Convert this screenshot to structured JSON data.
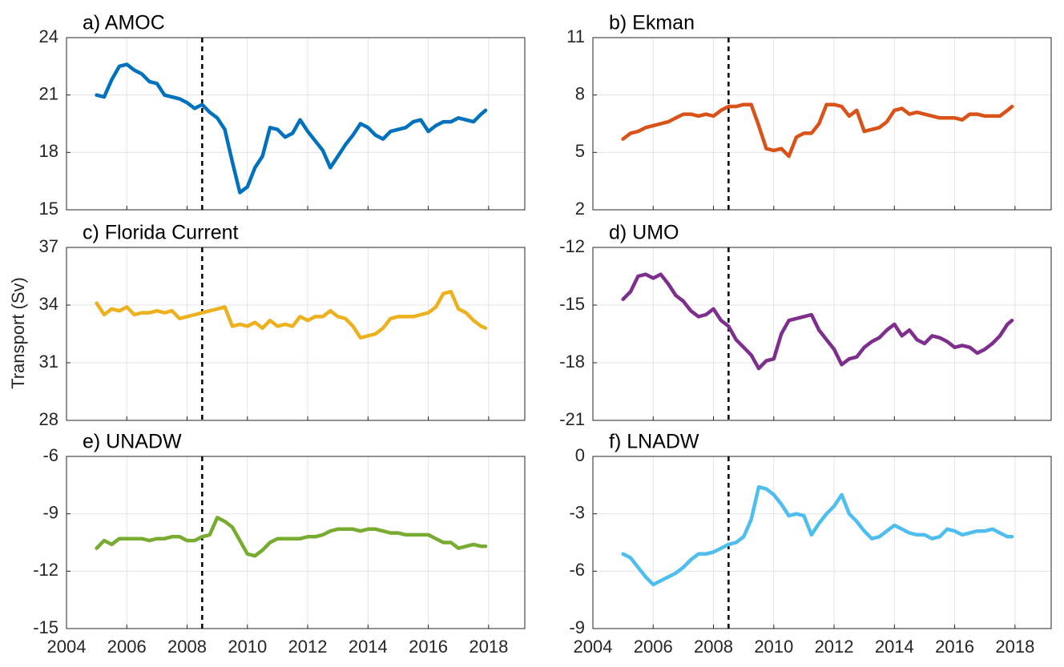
{
  "chart_data": [
    {
      "type": "line",
      "title": "a) AMOC",
      "color": "#0072bd",
      "xlim": [
        2004,
        2019.2
      ],
      "xticks": [
        2004,
        2006,
        2008,
        2010,
        2012,
        2014,
        2016,
        2018
      ],
      "ylim": [
        15,
        24
      ],
      "yticks": [
        15,
        18,
        21,
        24
      ],
      "grid": true,
      "vline": 2008.5,
      "x": [
        2005,
        2005.25,
        2005.5,
        2005.75,
        2006,
        2006.25,
        2006.5,
        2006.75,
        2007,
        2007.25,
        2007.5,
        2007.75,
        2008,
        2008.25,
        2008.5,
        2008.75,
        2009,
        2009.25,
        2009.5,
        2009.75,
        2010,
        2010.25,
        2010.5,
        2010.75,
        2011,
        2011.25,
        2011.5,
        2011.75,
        2012,
        2012.25,
        2012.5,
        2012.75,
        2013,
        2013.25,
        2013.5,
        2013.75,
        2014,
        2014.25,
        2014.5,
        2014.75,
        2015,
        2015.25,
        2015.5,
        2015.75,
        2016,
        2016.25,
        2016.5,
        2016.75,
        2017,
        2017.25,
        2017.5,
        2017.75,
        2017.9
      ],
      "values": [
        21.0,
        20.9,
        21.8,
        22.5,
        22.6,
        22.3,
        22.1,
        21.7,
        21.6,
        21.0,
        20.9,
        20.8,
        20.6,
        20.3,
        20.5,
        20.1,
        19.8,
        19.2,
        17.5,
        15.9,
        16.2,
        17.2,
        17.8,
        19.3,
        19.2,
        18.8,
        19.0,
        19.7,
        19.1,
        18.6,
        18.1,
        17.2,
        17.8,
        18.4,
        18.9,
        19.5,
        19.3,
        18.9,
        18.7,
        19.1,
        19.2,
        19.3,
        19.6,
        19.7,
        19.1,
        19.4,
        19.6,
        19.6,
        19.8,
        19.7,
        19.6,
        20.0,
        20.2
      ]
    },
    {
      "type": "line",
      "title": "b) Ekman",
      "color": "#d95319",
      "xlim": [
        2004,
        2019.2
      ],
      "xticks": [
        2004,
        2006,
        2008,
        2010,
        2012,
        2014,
        2016,
        2018
      ],
      "ylim": [
        2,
        11
      ],
      "yticks": [
        2,
        5,
        8,
        11
      ],
      "grid": true,
      "vline": 2008.5,
      "x": [
        2005,
        2005.25,
        2005.5,
        2005.75,
        2006,
        2006.25,
        2006.5,
        2006.75,
        2007,
        2007.25,
        2007.5,
        2007.75,
        2008,
        2008.25,
        2008.5,
        2008.75,
        2009,
        2009.25,
        2009.5,
        2009.75,
        2010,
        2010.25,
        2010.5,
        2010.75,
        2011,
        2011.25,
        2011.5,
        2011.75,
        2012,
        2012.25,
        2012.5,
        2012.75,
        2013,
        2013.25,
        2013.5,
        2013.75,
        2014,
        2014.25,
        2014.5,
        2014.75,
        2015,
        2015.25,
        2015.5,
        2015.75,
        2016,
        2016.25,
        2016.5,
        2016.75,
        2017,
        2017.25,
        2017.5,
        2017.75,
        2017.9
      ],
      "values": [
        5.7,
        6.0,
        6.1,
        6.3,
        6.4,
        6.5,
        6.6,
        6.8,
        7.0,
        7.0,
        6.9,
        7.0,
        6.9,
        7.2,
        7.4,
        7.4,
        7.5,
        7.5,
        6.4,
        5.2,
        5.1,
        5.2,
        4.8,
        5.8,
        6.0,
        6.0,
        6.5,
        7.5,
        7.5,
        7.4,
        6.9,
        7.2,
        6.1,
        6.2,
        6.3,
        6.6,
        7.2,
        7.3,
        7.0,
        7.1,
        7.0,
        6.9,
        6.8,
        6.8,
        6.8,
        6.7,
        7.0,
        7.0,
        6.9,
        6.9,
        6.9,
        7.2,
        7.4
      ]
    },
    {
      "type": "line",
      "title": "c) Florida Current",
      "ylabel": "Transport (Sv)",
      "color": "#edb120",
      "xlim": [
        2004,
        2019.2
      ],
      "xticks": [
        2004,
        2006,
        2008,
        2010,
        2012,
        2014,
        2016,
        2018
      ],
      "ylim": [
        28,
        37
      ],
      "yticks": [
        28,
        31,
        34,
        37
      ],
      "grid": true,
      "vline": 2008.5,
      "x": [
        2005,
        2005.25,
        2005.5,
        2005.75,
        2006,
        2006.25,
        2006.5,
        2006.75,
        2007,
        2007.25,
        2007.5,
        2007.75,
        2008,
        2008.25,
        2008.5,
        2008.75,
        2009,
        2009.25,
        2009.5,
        2009.75,
        2010,
        2010.25,
        2010.5,
        2010.75,
        2011,
        2011.25,
        2011.5,
        2011.75,
        2012,
        2012.25,
        2012.5,
        2012.75,
        2013,
        2013.25,
        2013.5,
        2013.75,
        2014,
        2014.25,
        2014.5,
        2014.75,
        2015,
        2015.25,
        2015.5,
        2015.75,
        2016,
        2016.25,
        2016.5,
        2016.75,
        2017,
        2017.25,
        2017.5,
        2017.75,
        2017.9
      ],
      "values": [
        34.1,
        33.5,
        33.8,
        33.7,
        33.9,
        33.5,
        33.6,
        33.6,
        33.7,
        33.6,
        33.7,
        33.3,
        33.4,
        33.5,
        33.6,
        33.7,
        33.8,
        33.9,
        32.9,
        33.0,
        32.9,
        33.1,
        32.8,
        33.2,
        32.9,
        33.0,
        32.9,
        33.4,
        33.2,
        33.4,
        33.4,
        33.7,
        33.4,
        33.3,
        32.9,
        32.3,
        32.4,
        32.5,
        32.8,
        33.3,
        33.4,
        33.4,
        33.4,
        33.5,
        33.6,
        33.9,
        34.6,
        34.7,
        33.8,
        33.6,
        33.2,
        32.9,
        32.8
      ]
    },
    {
      "type": "line",
      "title": "d) UMO",
      "color": "#7e2f8e",
      "xlim": [
        2004,
        2019.2
      ],
      "xticks": [
        2004,
        2006,
        2008,
        2010,
        2012,
        2014,
        2016,
        2018
      ],
      "ylim": [
        -21,
        -12
      ],
      "yticks": [
        -21,
        -18,
        -15,
        -12
      ],
      "grid": true,
      "vline": 2008.5,
      "x": [
        2005,
        2005.25,
        2005.5,
        2005.75,
        2006,
        2006.25,
        2006.5,
        2006.75,
        2007,
        2007.25,
        2007.5,
        2007.75,
        2008,
        2008.25,
        2008.5,
        2008.75,
        2009,
        2009.25,
        2009.5,
        2009.75,
        2010,
        2010.25,
        2010.5,
        2010.75,
        2011,
        2011.25,
        2011.5,
        2011.75,
        2012,
        2012.25,
        2012.5,
        2012.75,
        2013,
        2013.25,
        2013.5,
        2013.75,
        2014,
        2014.25,
        2014.5,
        2014.75,
        2015,
        2015.25,
        2015.5,
        2015.75,
        2016,
        2016.25,
        2016.5,
        2016.75,
        2017,
        2017.25,
        2017.5,
        2017.75,
        2017.9
      ],
      "values": [
        -14.7,
        -14.3,
        -13.5,
        -13.4,
        -13.6,
        -13.4,
        -13.9,
        -14.5,
        -14.8,
        -15.3,
        -15.6,
        -15.5,
        -15.2,
        -15.8,
        -16.1,
        -16.8,
        -17.2,
        -17.6,
        -18.3,
        -17.9,
        -17.8,
        -16.5,
        -15.8,
        -15.7,
        -15.6,
        -15.5,
        -16.3,
        -16.8,
        -17.3,
        -18.1,
        -17.8,
        -17.7,
        -17.2,
        -16.9,
        -16.7,
        -16.3,
        -16.0,
        -16.6,
        -16.3,
        -16.8,
        -17.0,
        -16.6,
        -16.7,
        -16.9,
        -17.2,
        -17.1,
        -17.2,
        -17.5,
        -17.3,
        -17.0,
        -16.6,
        -16.0,
        -15.8
      ]
    },
    {
      "type": "line",
      "title": "e) UNADW",
      "color": "#77ac30",
      "xlim": [
        2004,
        2019.2
      ],
      "xticks": [
        2004,
        2006,
        2008,
        2010,
        2012,
        2014,
        2016,
        2018
      ],
      "ylim": [
        -15,
        -6
      ],
      "yticks": [
        -15,
        -12,
        -9,
        -6
      ],
      "grid": true,
      "vline": 2008.5,
      "x": [
        2005,
        2005.25,
        2005.5,
        2005.75,
        2006,
        2006.25,
        2006.5,
        2006.75,
        2007,
        2007.25,
        2007.5,
        2007.75,
        2008,
        2008.25,
        2008.5,
        2008.75,
        2009,
        2009.25,
        2009.5,
        2009.75,
        2010,
        2010.25,
        2010.5,
        2010.75,
        2011,
        2011.25,
        2011.5,
        2011.75,
        2012,
        2012.25,
        2012.5,
        2012.75,
        2013,
        2013.25,
        2013.5,
        2013.75,
        2014,
        2014.25,
        2014.5,
        2014.75,
        2015,
        2015.25,
        2015.5,
        2015.75,
        2016,
        2016.25,
        2016.5,
        2016.75,
        2017,
        2017.25,
        2017.5,
        2017.75,
        2017.9
      ],
      "values": [
        -10.8,
        -10.4,
        -10.6,
        -10.3,
        -10.3,
        -10.3,
        -10.3,
        -10.4,
        -10.3,
        -10.3,
        -10.2,
        -10.2,
        -10.4,
        -10.4,
        -10.2,
        -10.1,
        -9.2,
        -9.4,
        -9.7,
        -10.4,
        -11.1,
        -11.2,
        -10.9,
        -10.5,
        -10.3,
        -10.3,
        -10.3,
        -10.3,
        -10.2,
        -10.2,
        -10.1,
        -9.9,
        -9.8,
        -9.8,
        -9.8,
        -9.9,
        -9.8,
        -9.8,
        -9.9,
        -10.0,
        -10.0,
        -10.1,
        -10.1,
        -10.1,
        -10.1,
        -10.3,
        -10.5,
        -10.5,
        -10.8,
        -10.7,
        -10.6,
        -10.7,
        -10.7
      ]
    },
    {
      "type": "line",
      "title": "f) LNADW",
      "color": "#4dbeee",
      "xlim": [
        2004,
        2019.2
      ],
      "xticks": [
        2004,
        2006,
        2008,
        2010,
        2012,
        2014,
        2016,
        2018
      ],
      "ylim": [
        -9,
        0
      ],
      "yticks": [
        -9,
        -6,
        -3,
        0
      ],
      "grid": true,
      "vline": 2008.5,
      "x": [
        2005,
        2005.25,
        2005.5,
        2005.75,
        2006,
        2006.25,
        2006.5,
        2006.75,
        2007,
        2007.25,
        2007.5,
        2007.75,
        2008,
        2008.25,
        2008.5,
        2008.75,
        2009,
        2009.25,
        2009.5,
        2009.75,
        2010,
        2010.25,
        2010.5,
        2010.75,
        2011,
        2011.25,
        2011.5,
        2011.75,
        2012,
        2012.25,
        2012.5,
        2012.75,
        2013,
        2013.25,
        2013.5,
        2013.75,
        2014,
        2014.25,
        2014.5,
        2014.75,
        2015,
        2015.25,
        2015.5,
        2015.75,
        2016,
        2016.25,
        2016.5,
        2016.75,
        2017,
        2017.25,
        2017.5,
        2017.75,
        2017.9
      ],
      "values": [
        -5.1,
        -5.3,
        -5.8,
        -6.3,
        -6.7,
        -6.5,
        -6.3,
        -6.1,
        -5.8,
        -5.4,
        -5.1,
        -5.1,
        -5.0,
        -4.8,
        -4.6,
        -4.5,
        -4.2,
        -3.3,
        -1.6,
        -1.7,
        -2.0,
        -2.5,
        -3.1,
        -3.0,
        -3.1,
        -4.1,
        -3.5,
        -3.0,
        -2.6,
        -2.0,
        -3.0,
        -3.4,
        -3.9,
        -4.3,
        -4.2,
        -3.9,
        -3.6,
        -3.8,
        -4.0,
        -4.1,
        -4.1,
        -4.3,
        -4.2,
        -3.8,
        -3.9,
        -4.1,
        -4.0,
        -3.9,
        -3.9,
        -3.8,
        -4.0,
        -4.2,
        -4.2
      ]
    }
  ]
}
